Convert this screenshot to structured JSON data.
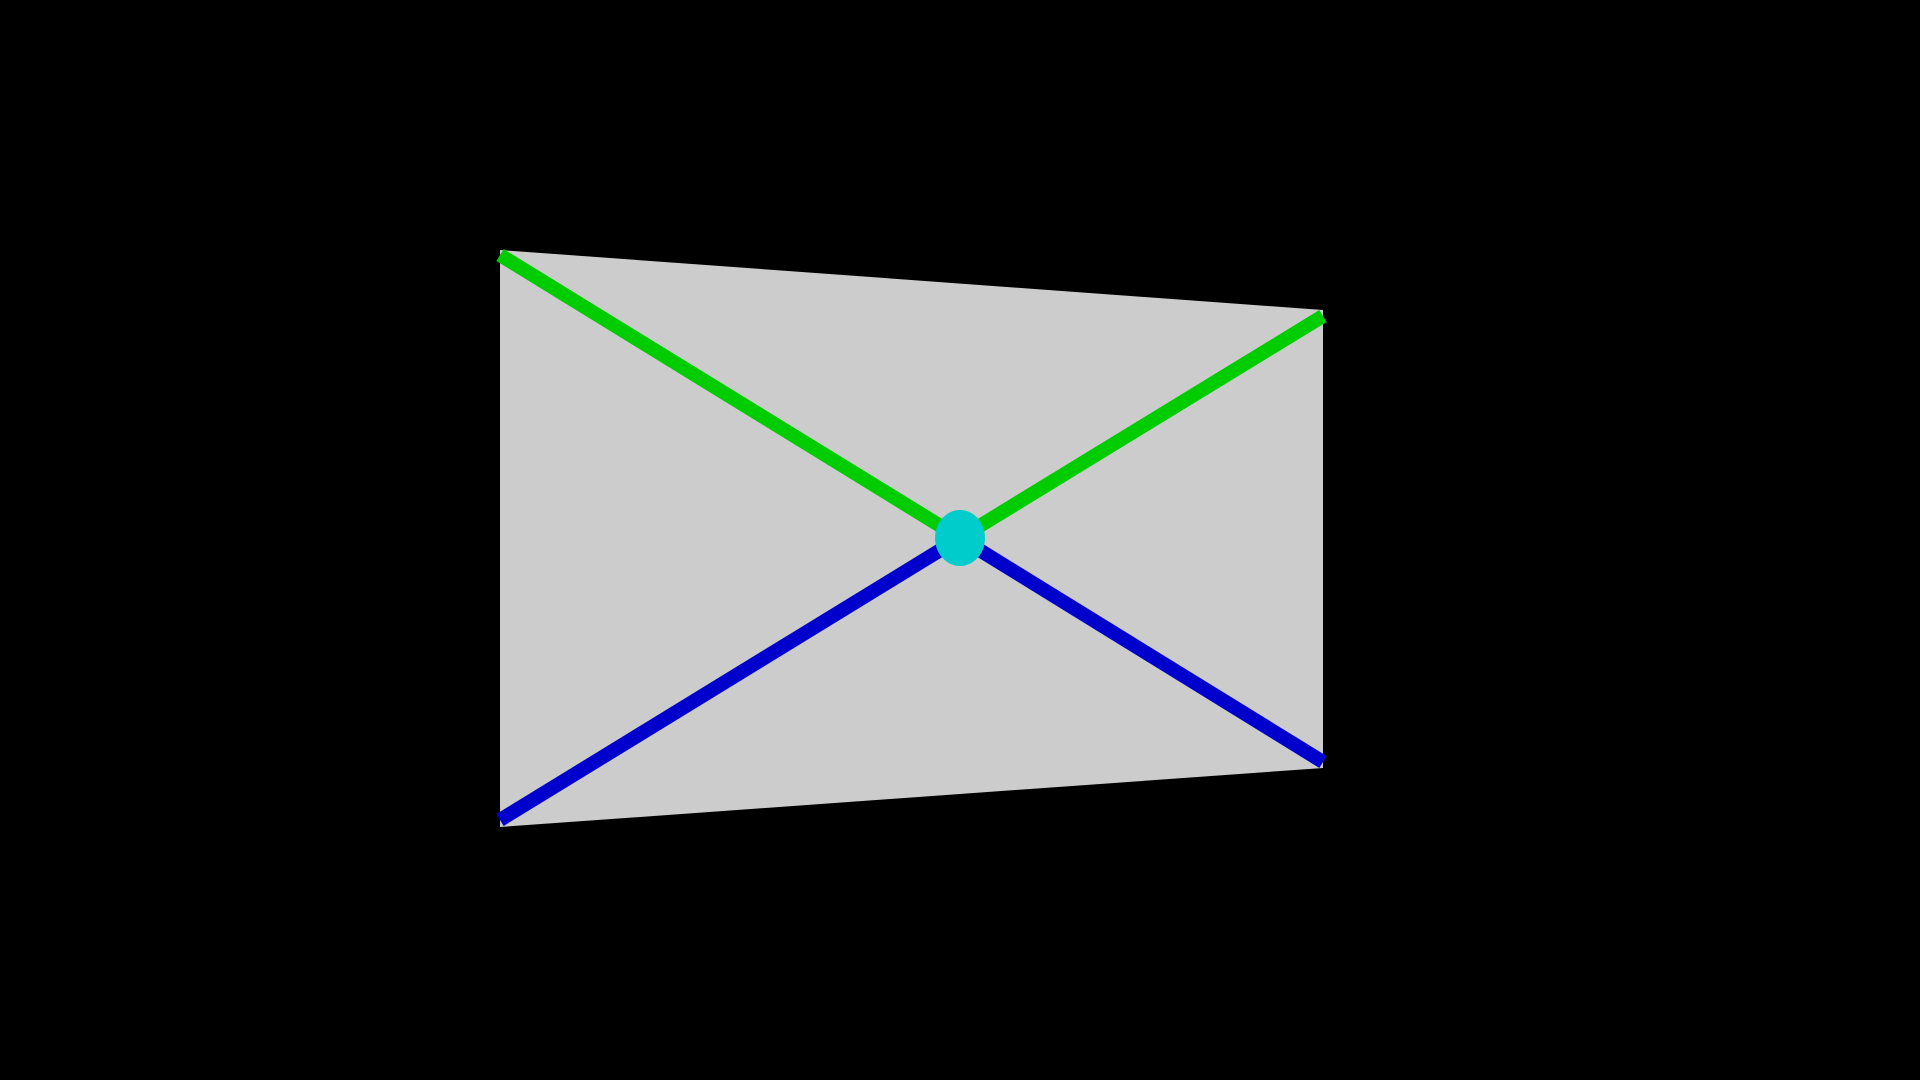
{
  "scene": {
    "background_color": "#000000",
    "panel_color": "#CCCCCC",
    "upper_diagonal_color": "#00CC00",
    "lower_diagonal_color": "#0000CC",
    "center_marker_color": "#00CCCC",
    "projection": "perspective",
    "labels": []
  }
}
